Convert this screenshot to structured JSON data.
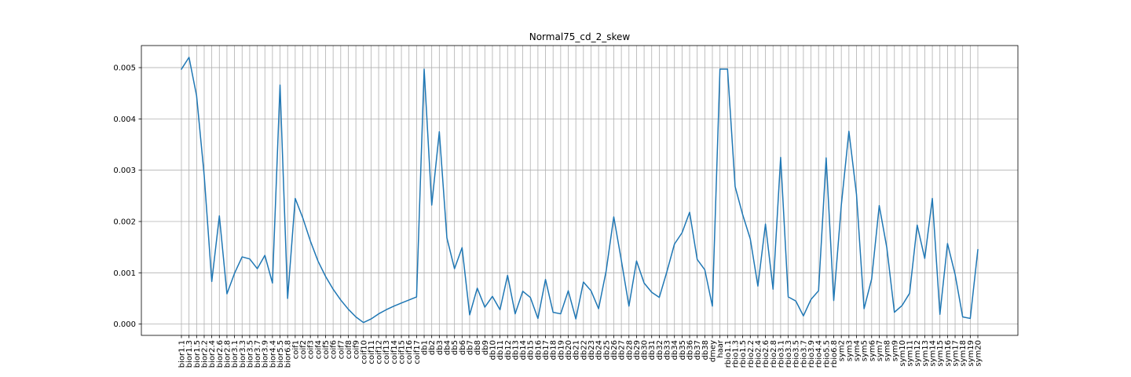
{
  "chart_data": {
    "type": "line",
    "title": "Normal75_cd_2_skew",
    "xlabel": "",
    "ylabel": "",
    "ylim": [
      -0.00022,
      0.00543
    ],
    "yticks": [
      0.0,
      0.001,
      0.002,
      0.003,
      0.004,
      0.005
    ],
    "ytick_labels": [
      "0.000",
      "0.001",
      "0.002",
      "0.003",
      "0.004",
      "0.005"
    ],
    "grid": true,
    "colors": {
      "line": "#1f77b4"
    },
    "categories": [
      "bior1.1",
      "bior1.3",
      "bior1.5",
      "bior2.2",
      "bior2.4",
      "bior2.6",
      "bior2.8",
      "bior3.1",
      "bior3.3",
      "bior3.5",
      "bior3.7",
      "bior3.9",
      "bior4.4",
      "bior5.5",
      "bior6.8",
      "coif1",
      "coif2",
      "coif3",
      "coif4",
      "coif5",
      "coif6",
      "coif7",
      "coif8",
      "coif9",
      "coif10",
      "coif11",
      "coif12",
      "coif13",
      "coif14",
      "coif15",
      "coif16",
      "coif17",
      "db1",
      "db2",
      "db3",
      "db4",
      "db5",
      "db6",
      "db7",
      "db8",
      "db9",
      "db10",
      "db11",
      "db12",
      "db13",
      "db14",
      "db15",
      "db16",
      "db17",
      "db18",
      "db19",
      "db20",
      "db21",
      "db22",
      "db23",
      "db24",
      "db25",
      "db26",
      "db27",
      "db28",
      "db29",
      "db30",
      "db31",
      "db32",
      "db33",
      "db34",
      "db35",
      "db36",
      "db37",
      "db38",
      "dmey",
      "haar",
      "rbio1.1",
      "rbio1.3",
      "rbio1.5",
      "rbio2.2",
      "rbio2.4",
      "rbio2.6",
      "rbio2.8",
      "rbio3.1",
      "rbio3.3",
      "rbio3.5",
      "rbio3.7",
      "rbio3.9",
      "rbio4.4",
      "rbio5.5",
      "rbio6.8",
      "sym2",
      "sym3",
      "sym4",
      "sym5",
      "sym6",
      "sym7",
      "sym8",
      "sym9",
      "sym10",
      "sym11",
      "sym12",
      "sym13",
      "sym14",
      "sym15",
      "sym16",
      "sym17",
      "sym18",
      "sym19",
      "sym20"
    ],
    "series": [
      {
        "values": [
          0.00497,
          0.0052,
          0.00445,
          0.0029,
          0.00083,
          0.00211,
          0.00059,
          0.00099,
          0.00131,
          0.00127,
          0.00108,
          0.00134,
          0.0008,
          0.00466,
          0.0005,
          0.00245,
          0.00207,
          0.00162,
          0.00123,
          0.00093,
          0.00068,
          0.00047,
          0.00029,
          0.00014,
          3e-05,
          0.0001,
          0.0002,
          0.00028,
          0.00035,
          0.00041,
          0.00047,
          0.00053,
          0.00497,
          0.00232,
          0.00375,
          0.00168,
          0.00108,
          0.00149,
          0.00018,
          0.0007,
          0.00033,
          0.00054,
          0.00028,
          0.00095,
          0.0002,
          0.00064,
          0.00052,
          0.00011,
          0.00087,
          0.00023,
          0.0002,
          0.00065,
          0.0001,
          0.00082,
          0.00065,
          0.0003,
          0.00104,
          0.00209,
          0.00124,
          0.00035,
          0.00123,
          0.0008,
          0.00062,
          0.00052,
          0.00102,
          0.00156,
          0.00178,
          0.00218,
          0.00126,
          0.00106,
          0.00035,
          0.00497,
          0.00497,
          0.00268,
          0.00213,
          0.00166,
          0.00074,
          0.00195,
          0.00068,
          0.00325,
          0.00053,
          0.00045,
          0.00016,
          0.00048,
          0.00065,
          0.00324,
          0.00046,
          0.00232,
          0.00376,
          0.00253,
          0.0003,
          0.00088,
          0.00231,
          0.00149,
          0.00023,
          0.00036,
          0.0006,
          0.00193,
          0.00128,
          0.00245,
          0.00019,
          0.00157,
          0.00097,
          0.00014,
          0.00011,
          0.00145
        ]
      }
    ]
  }
}
